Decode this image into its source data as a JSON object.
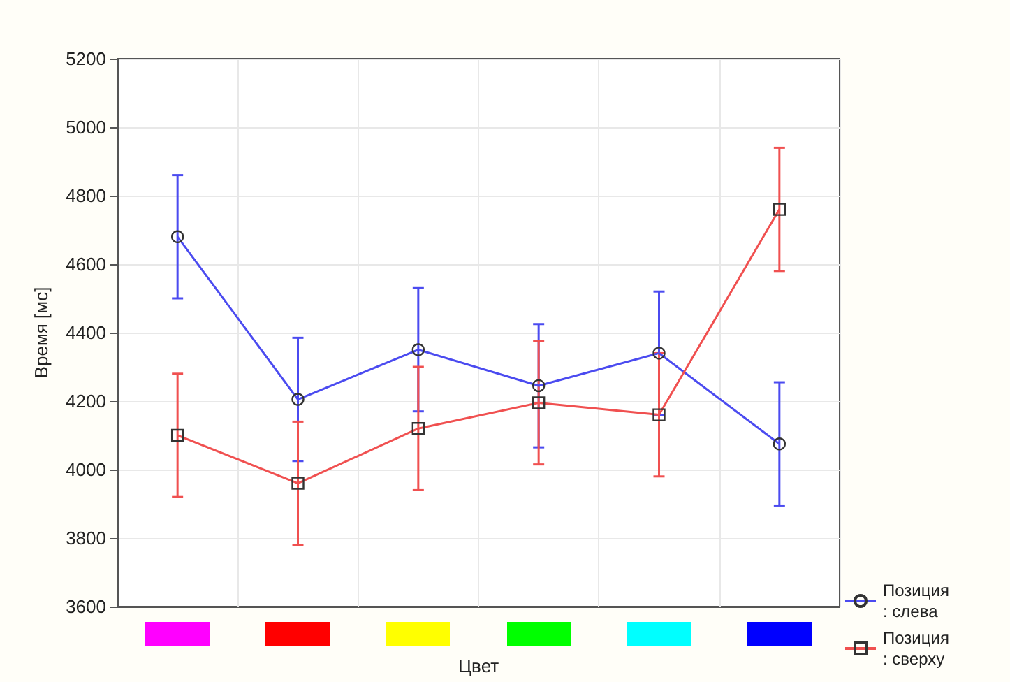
{
  "chart_data": {
    "type": "line",
    "xlabel": "Цвет",
    "ylabel": "Время [мс]",
    "categories": [
      null,
      null,
      null,
      null,
      null,
      null
    ],
    "series": [
      {
        "name": "Позиция: слева",
        "color": "#4b4bf0",
        "marker": "circle",
        "values": [
          4680,
          4205,
          4350,
          4245,
          4340,
          4075
        ],
        "errors": [
          180,
          180,
          180,
          180,
          180,
          180
        ]
      },
      {
        "name": "Позиция: сверху",
        "color": "#f05050",
        "marker": "square",
        "values": [
          4100,
          3960,
          4120,
          4195,
          4160,
          4760
        ],
        "errors": [
          180,
          180,
          180,
          180,
          180,
          180
        ]
      }
    ],
    "ylim": [
      3600,
      5200
    ],
    "yticks": [
      3600,
      3800,
      4000,
      4200,
      4400,
      4600,
      4800,
      5000,
      5200
    ],
    "grid": true,
    "legend": "bottom right"
  }
}
